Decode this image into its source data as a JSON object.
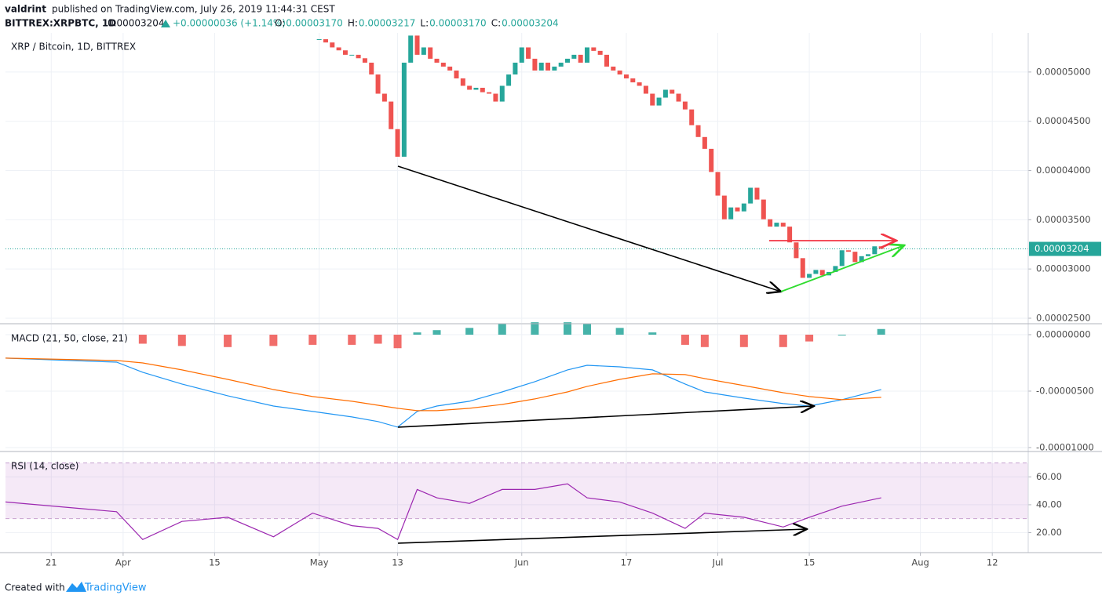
{
  "header": {
    "author": "valdrint",
    "published": "published on TradingView.com, July 26, 2019 11:44:31 CEST",
    "symbol": "BITTREX:XRPBTC, 1D",
    "price": "0.00003204",
    "change": "+0.00000036 (+1.14%)",
    "ohlc": [
      {
        "label": "O:",
        "value": "0.00003170"
      },
      {
        "label": "H:",
        "value": "0.00003217"
      },
      {
        "label": "L:",
        "value": "0.00003170"
      },
      {
        "label": "C:",
        "value": "0.00003204"
      }
    ]
  },
  "chart_data": [
    {
      "type": "candlestick",
      "title": "XRP / Bitcoin, 1D, BITTREX",
      "up_color": "#26a69a",
      "down_color": "#ef5350",
      "x": [
        121,
        122,
        123,
        124,
        125,
        126,
        127,
        128,
        129,
        130,
        131,
        132,
        133,
        134,
        135,
        136,
        137,
        138,
        139,
        140,
        141,
        142,
        143,
        144,
        145,
        146,
        147,
        148,
        149,
        150,
        151,
        152,
        153,
        154,
        155,
        156,
        157,
        158,
        159,
        160,
        161,
        162,
        163,
        164,
        165,
        166,
        167,
        168,
        169,
        170,
        171,
        172,
        173,
        174,
        175,
        176,
        177,
        178,
        179,
        180,
        181,
        182,
        183,
        184,
        185,
        186,
        187,
        188,
        189,
        190,
        191,
        192,
        193,
        194,
        195,
        196,
        197,
        198,
        199,
        200,
        201,
        202,
        203,
        204,
        205,
        206,
        207
      ],
      "values": [
        5.333e-05,
        5.3e-05,
        5.25e-05,
        5.22e-05,
        5.175e-05,
        5.175e-05,
        5.14e-05,
        5.095e-05,
        4.975e-05,
        4.78e-05,
        4.7e-05,
        4.42e-05,
        4.14e-05,
        5.095e-05,
        5.37e-05,
        5.175e-05,
        5.25e-05,
        5.135e-05,
        5.095e-05,
        5.055e-05,
        5.015e-05,
        4.935e-05,
        4.86e-05,
        4.82e-05,
        4.84e-05,
        4.795e-05,
        4.78e-05,
        4.7e-05,
        4.86e-05,
        4.975e-05,
        5.095e-05,
        5.25e-05,
        5.135e-05,
        5.015e-05,
        5.095e-05,
        5.015e-05,
        5.055e-05,
        5.095e-05,
        5.135e-05,
        5.175e-05,
        5.095e-05,
        5.25e-05,
        5.215e-05,
        5.175e-05,
        5.055e-05,
        5.015e-05,
        4.975e-05,
        4.935e-05,
        4.895e-05,
        4.86e-05,
        4.78e-05,
        4.66e-05,
        4.74e-05,
        4.82e-05,
        4.78e-05,
        4.7e-05,
        4.62e-05,
        4.46e-05,
        4.34e-05,
        4.22e-05,
        3.985e-05,
        3.745e-05,
        3.505e-05,
        3.625e-05,
        3.585e-05,
        3.665e-05,
        3.825e-05,
        3.705e-05,
        3.505e-05,
        3.43e-05,
        3.47e-05,
        3.43e-05,
        3.27e-05,
        3.11e-05,
        2.91e-05,
        2.95e-05,
        2.99e-05,
        2.935e-05,
        2.97e-05,
        3.03e-05,
        3.19e-05,
        3.175e-05,
        3.07e-05,
        3.13e-05,
        3.15e-05,
        3.23e-05,
        3.204e-05
      ],
      "last_price_label": "0.00003204",
      "last_price_color": "#26a69a",
      "xlim": [
        73,
        229.5
      ],
      "ylim": [
        2.452e-05,
        5.397e-05
      ],
      "yticks": [
        {
          "value": 2.5e-05,
          "label": "0.00002500"
        },
        {
          "value": 3e-05,
          "label": "0.00003000"
        },
        {
          "value": 3.5e-05,
          "label": "0.00003500"
        },
        {
          "value": 4e-05,
          "label": "0.00004000"
        },
        {
          "value": 4.5e-05,
          "label": "0.00004500"
        },
        {
          "value": 5e-05,
          "label": "0.00005000"
        }
      ]
    },
    {
      "type": "macd",
      "title": "MACD (21, 50, close, 21)",
      "x": [
        73,
        90,
        94,
        100,
        107,
        114,
        120,
        126,
        130,
        133,
        136,
        139,
        144,
        149,
        154,
        159,
        162,
        167,
        172,
        177,
        180,
        186,
        192,
        196,
        201,
        207
      ],
      "histogram": {
        "up_color": "#26a69a",
        "down_color": "#ef5350",
        "values": [
          null,
          null,
          -8e-07,
          -1e-06,
          -1.1e-06,
          -1e-06,
          -9e-07,
          -9e-07,
          -8e-07,
          -1.2e-06,
          2e-07,
          4e-07,
          6e-07,
          1e-06,
          1.1e-06,
          1.1e-06,
          1e-06,
          6e-07,
          2e-07,
          -9e-07,
          -1.1e-06,
          -1.1e-06,
          -1.1e-06,
          -6e-07,
          0,
          5e-07
        ]
      },
      "series": [
        {
          "color": "#2196f3",
          "values": [
            -2.08e-06,
            -2.43e-06,
            -3.33e-06,
            -4.37e-06,
            -5.41e-06,
            -6.32e-06,
            -6.8e-06,
            -7.29e-06,
            -7.7e-06,
            -8.19e-06,
            -6.8e-06,
            -6.32e-06,
            -5.9e-06,
            -5.07e-06,
            -4.16e-06,
            -3.12e-06,
            -2.71e-06,
            -2.85e-06,
            -3.12e-06,
            -4.37e-06,
            -5.07e-06,
            -5.62e-06,
            -6.11e-06,
            -6.32e-06,
            -5.76e-06,
            -4.86e-06
          ]
        },
        {
          "color": "#ff6d00",
          "values": [
            -2.08e-06,
            -2.29e-06,
            -2.5e-06,
            -3.12e-06,
            -3.96e-06,
            -4.86e-06,
            -5.48e-06,
            -5.9e-06,
            -6.25e-06,
            -6.52e-06,
            -6.73e-06,
            -6.73e-06,
            -6.52e-06,
            -6.18e-06,
            -5.69e-06,
            -5.07e-06,
            -4.58e-06,
            -3.96e-06,
            -3.47e-06,
            -3.54e-06,
            -3.89e-06,
            -4.51e-06,
            -5.14e-06,
            -5.48e-06,
            -5.76e-06,
            -5.55e-06
          ]
        }
      ],
      "xlim": [
        73,
        229.5
      ],
      "ylim": [
        -1.028e-05,
        9e-07
      ],
      "yticks": [
        {
          "value": -1e-05,
          "label": "-0.00001000"
        },
        {
          "value": -5e-06,
          "label": "-0.00000500"
        },
        {
          "value": 0,
          "label": "0.00000000"
        }
      ]
    },
    {
      "type": "rsi",
      "title": "RSI (14, close)",
      "x": [
        73,
        90,
        94,
        100,
        107,
        114,
        120,
        126,
        130,
        133,
        136,
        139,
        144,
        149,
        154,
        159,
        162,
        167,
        172,
        177,
        180,
        186,
        192,
        196,
        201,
        207
      ],
      "series": [
        {
          "color": "#9c27b0",
          "values": [
            42,
            35,
            15,
            28,
            31,
            17,
            34,
            25,
            23,
            15,
            51,
            45,
            41,
            51,
            51,
            55,
            45,
            42,
            34,
            23,
            34,
            31,
            24,
            31,
            39,
            45
          ]
        }
      ],
      "band": [
        30,
        70
      ],
      "band_color": "#9c27b0",
      "xlim": [
        73,
        229.5
      ],
      "ylim": [
        5.6,
        77.7
      ],
      "yticks": [
        {
          "value": 20,
          "label": "20.00"
        },
        {
          "value": 40,
          "label": "40.00"
        },
        {
          "value": 60,
          "label": "60.00"
        }
      ],
      "xticks": [
        {
          "value": 80,
          "label": "21"
        },
        {
          "value": 91,
          "label": "Apr"
        },
        {
          "value": 105,
          "label": "15"
        },
        {
          "value": 121,
          "label": "May"
        },
        {
          "value": 133,
          "label": "13"
        },
        {
          "value": 152,
          "label": "Jun"
        },
        {
          "value": 168,
          "label": "17"
        },
        {
          "value": 182,
          "label": "Jul"
        },
        {
          "value": 196,
          "label": "15"
        },
        {
          "value": 213,
          "label": "Aug"
        },
        {
          "value": 224,
          "label": "12"
        }
      ]
    }
  ],
  "footer": {
    "text": "Created with",
    "brand": "TradingView"
  }
}
